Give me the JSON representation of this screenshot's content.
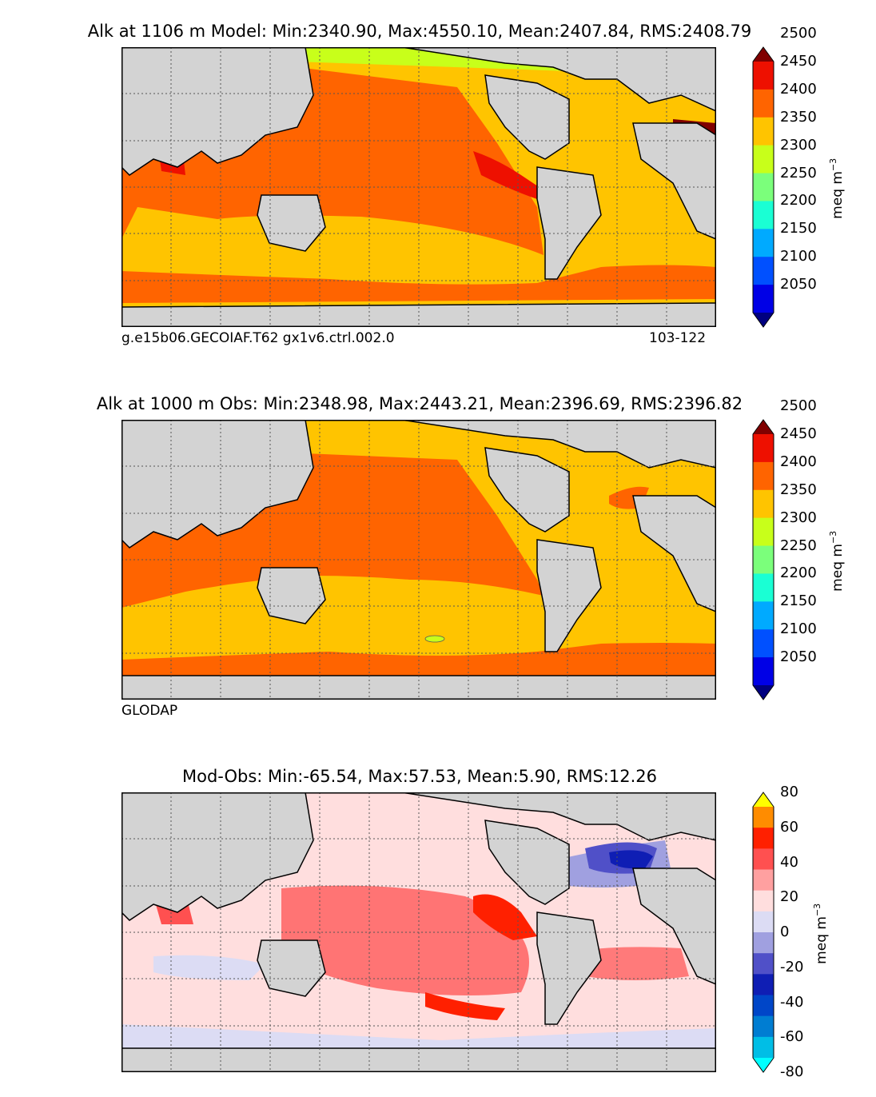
{
  "chart_data": [
    {
      "type": "heatmap",
      "title": "Alk at 1106 m Model: Min:2340.90, Max:4550.10, Mean:2407.84, RMS:2408.79",
      "footer_left": "g.e15b06.GECOIAF.T62 gx1v6.ctrl.002.0",
      "footer_right": "103-122",
      "colorbar": {
        "label_main": "meq m",
        "label_exp": "−3",
        "ticks": [
          "2050",
          "2100",
          "2150",
          "2200",
          "2250",
          "2300",
          "2350",
          "2400",
          "2450",
          "2500"
        ],
        "colors": [
          "#000080",
          "#0000e6",
          "#0050ff",
          "#00aaff",
          "#1affd4",
          "#7bff7b",
          "#c8ff1a",
          "#ffc400",
          "#ff6400",
          "#ee1000",
          "#800000"
        ],
        "extend": "both"
      },
      "summary": {
        "min": 2340.9,
        "max": 4550.1,
        "mean": 2407.84,
        "rms": 2408.79,
        "depth_m": 1106
      }
    },
    {
      "type": "heatmap",
      "title": "Alk at 1000 m Obs: Min:2348.98, Max:2443.21, Mean:2396.69, RMS:2396.82",
      "footer_left": "GLODAP",
      "colorbar": {
        "label_main": "meq m",
        "label_exp": "−3",
        "ticks": [
          "2050",
          "2100",
          "2150",
          "2200",
          "2250",
          "2300",
          "2350",
          "2400",
          "2450",
          "2500"
        ],
        "colors": [
          "#000080",
          "#0000e6",
          "#0050ff",
          "#00aaff",
          "#1affd4",
          "#7bff7b",
          "#c8ff1a",
          "#ffc400",
          "#ff6400",
          "#ee1000",
          "#800000"
        ],
        "extend": "both"
      },
      "summary": {
        "min": 2348.98,
        "max": 2443.21,
        "mean": 2396.69,
        "rms": 2396.82,
        "depth_m": 1000
      }
    },
    {
      "type": "heatmap",
      "title": "Mod-Obs: Min:-65.54, Max:57.53, Mean:5.90, RMS:12.26",
      "colorbar": {
        "label_main": "meq m",
        "label_exp": "−3",
        "ticks": [
          "80",
          "60",
          "40",
          "20",
          "0",
          "-20",
          "-40",
          "-60",
          "-80"
        ],
        "colors": [
          "#ffff00",
          "#ff8c00",
          "#ff2000",
          "#ff5050",
          "#ffa0a0",
          "#ffdede",
          "#dcdcf4",
          "#a0a0e0",
          "#5050c8",
          "#0f1eb4",
          "#0046c8",
          "#007dd2",
          "#00bee6",
          "#00ffff"
        ],
        "extend": "both"
      },
      "summary": {
        "min": -65.54,
        "max": 57.53,
        "mean": 5.9,
        "rms": 12.26
      }
    }
  ]
}
